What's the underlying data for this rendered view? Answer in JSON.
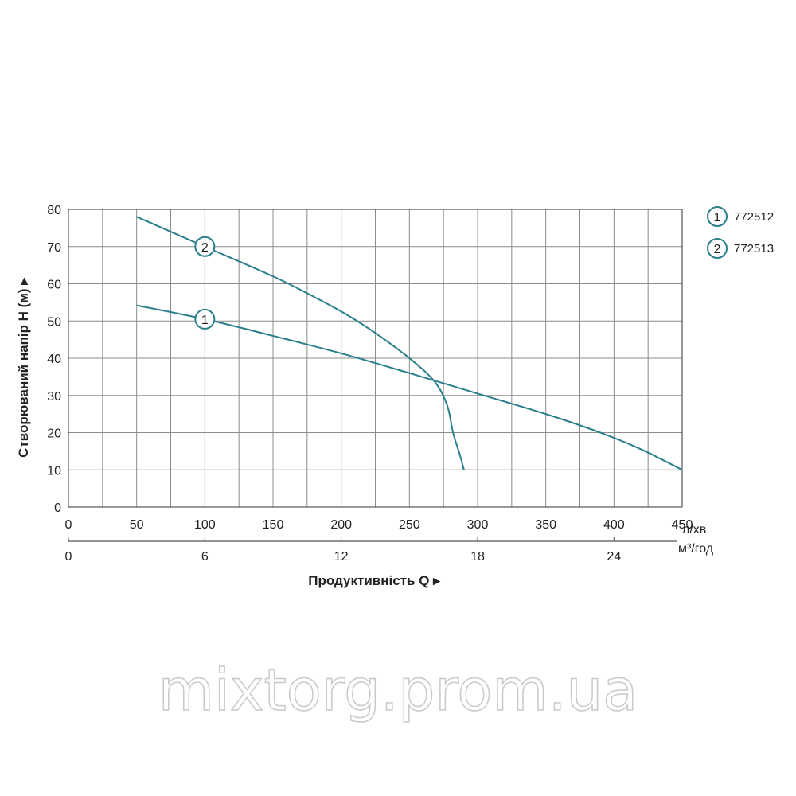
{
  "chart_data": {
    "type": "line",
    "title": "",
    "ylabel": "Створюваний напір H (м) ▸",
    "xlabel": "Продуктивність  Q  ▸",
    "x_unit": "л/хв",
    "x2_unit": "м³/год",
    "xlim": [
      0,
      450
    ],
    "ylim": [
      0,
      80
    ],
    "x_ticks": [
      "0",
      "50",
      "100",
      "150",
      "200",
      "250",
      "300",
      "350",
      "400",
      "450"
    ],
    "x2_ticks": [
      {
        "label": "0",
        "x": 0
      },
      {
        "label": "6",
        "x": 100
      },
      {
        "label": "12",
        "x": 200
      },
      {
        "label": "18",
        "x": 300
      },
      {
        "label": "24",
        "x": 400
      }
    ],
    "y_ticks": [
      "0",
      "10",
      "20",
      "30",
      "40",
      "50",
      "60",
      "70",
      "80"
    ],
    "grid": true,
    "color": "#2a7f8d",
    "series": [
      {
        "marker": "1",
        "name": "772512",
        "marker_at": [
          100,
          50.5
        ],
        "points": [
          [
            50,
            54.2
          ],
          [
            100,
            50.5
          ],
          [
            150,
            46
          ],
          [
            200,
            41.3
          ],
          [
            250,
            36
          ],
          [
            300,
            30.5
          ],
          [
            350,
            25
          ],
          [
            390,
            20
          ],
          [
            420,
            15.5
          ],
          [
            450,
            10
          ]
        ]
      },
      {
        "marker": "2",
        "name": "772513",
        "marker_at": [
          100,
          70
        ],
        "points": [
          [
            50,
            78
          ],
          [
            100,
            70
          ],
          [
            150,
            62
          ],
          [
            180,
            56.5
          ],
          [
            205,
            51.5
          ],
          [
            230,
            45.5
          ],
          [
            255,
            38.5
          ],
          [
            270,
            33
          ],
          [
            278,
            27
          ],
          [
            282,
            20
          ],
          [
            287,
            14
          ],
          [
            290,
            10
          ]
        ]
      }
    ],
    "legend_position": "right"
  },
  "watermark": "mixtorg.prom.ua"
}
